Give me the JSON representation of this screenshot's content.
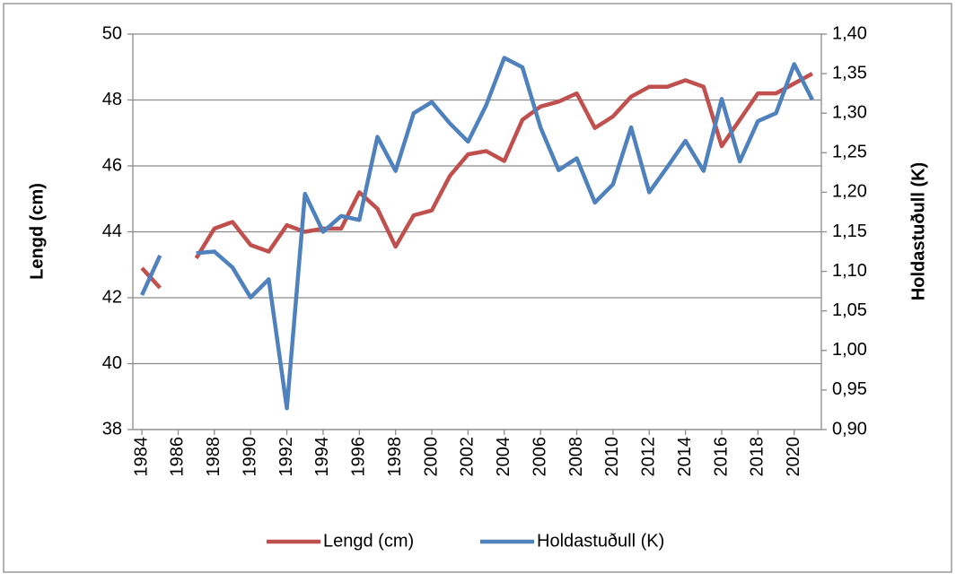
{
  "chart_data": {
    "type": "line",
    "x": [
      1984,
      1985,
      1986,
      1987,
      1988,
      1989,
      1990,
      1991,
      1992,
      1993,
      1994,
      1995,
      1996,
      1997,
      1998,
      1999,
      2000,
      2001,
      2002,
      2003,
      2004,
      2005,
      2006,
      2007,
      2008,
      2009,
      2010,
      2011,
      2012,
      2013,
      2014,
      2015,
      2016,
      2017,
      2018,
      2019,
      2020,
      2021
    ],
    "xlim": [
      1983.5,
      2021.5
    ],
    "xticks": [
      1984,
      1986,
      1988,
      1990,
      1992,
      1994,
      1996,
      1998,
      2000,
      2002,
      2004,
      2006,
      2008,
      2010,
      2012,
      2014,
      2016,
      2018,
      2020
    ],
    "ylim": [
      38,
      50
    ],
    "yticks": [
      38,
      40,
      42,
      44,
      46,
      48,
      50
    ],
    "y2lim": [
      0.9,
      1.4
    ],
    "y2ticks": [
      {
        "value": 0.9,
        "label": "0,90"
      },
      {
        "value": 0.95,
        "label": "0,95"
      },
      {
        "value": 1.0,
        "label": "1,00"
      },
      {
        "value": 1.05,
        "label": "1,05"
      },
      {
        "value": 1.1,
        "label": "1,10"
      },
      {
        "value": 1.15,
        "label": "1,15"
      },
      {
        "value": 1.2,
        "label": "1,20"
      },
      {
        "value": 1.25,
        "label": "1,25"
      },
      {
        "value": 1.3,
        "label": "1,30"
      },
      {
        "value": 1.35,
        "label": "1,35"
      },
      {
        "value": 1.4,
        "label": "1,40"
      }
    ],
    "ylabel": "Lengd (cm)",
    "y2label": "Holdastuðull (K)",
    "grid": true,
    "legend": "bottom",
    "series": [
      {
        "name": "Lengd (cm)",
        "color": "#c0504d",
        "values": [
          42.9,
          42.3,
          null,
          43.2,
          44.1,
          44.3,
          43.6,
          43.4,
          44.2,
          44.0,
          44.1,
          44.1,
          45.2,
          44.7,
          43.55,
          44.5,
          44.65,
          45.7,
          46.35,
          46.45,
          46.15,
          47.4,
          47.8,
          47.95,
          48.2,
          47.15,
          47.5,
          48.1,
          48.4,
          48.4,
          48.6,
          48.4,
          46.6,
          47.4,
          48.2,
          48.2,
          48.5,
          48.8
        ]
      },
      {
        "name": "Holdastuðull (K)",
        "color": "#4f81bd",
        "axis": "y2",
        "values": [
          1.07,
          1.12,
          null,
          1.123,
          1.125,
          1.105,
          1.067,
          1.09,
          0.927,
          1.198,
          1.15,
          1.17,
          1.165,
          1.27,
          1.227,
          1.3,
          1.314,
          1.287,
          1.264,
          1.31,
          1.37,
          1.358,
          1.282,
          1.228,
          1.243,
          1.187,
          1.21,
          1.282,
          1.2,
          1.232,
          1.265,
          1.227,
          1.318,
          1.239,
          1.29,
          1.3,
          1.362,
          1.317
        ]
      }
    ]
  }
}
